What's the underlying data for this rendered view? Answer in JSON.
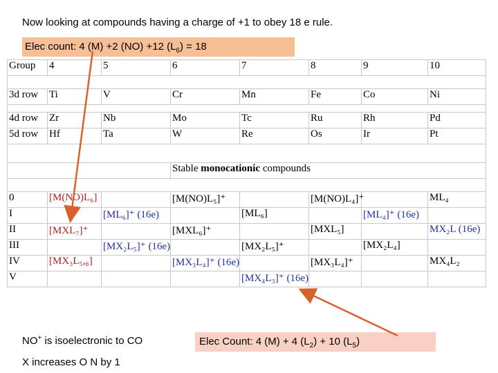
{
  "title": "Now looking at compounds having a charge of +1 to obey 18 e rule.",
  "elec_count_1": {
    "prefix": "Elec count:  4 (M) +2 (NO) +12 (L",
    "sub": "6",
    "suffix": ") = 18"
  },
  "elec_count_2": {
    "prefix": "Elec Count: 4 (M) + 4 (L",
    "sub1": "2",
    "mid": ") + 10 (L",
    "sub2": "5",
    "suffix": ")"
  },
  "note_nitrosyl": {
    "prefix": "NO",
    "sup": "+",
    "suffix": " is isoelectronic to CO"
  },
  "note_x": "X increases O N by 1",
  "table": {
    "header": [
      "Group",
      "4",
      "5",
      "6",
      "7",
      "8",
      "9",
      "10"
    ],
    "row_3d": [
      "3d row",
      "Ti",
      "V",
      "Cr",
      "Mn",
      "Fe",
      "Co",
      "Ni"
    ],
    "row_4d": [
      "4d row",
      "Zr",
      "Nb",
      "Mo",
      "Tc",
      "Ru",
      "Rh",
      "Pd"
    ],
    "row_5d": [
      "5d row",
      "Hf",
      "Ta",
      "W",
      "Re",
      "Os",
      "Ir",
      "Pt"
    ],
    "stable_title": {
      "pre": "Stable ",
      "bold": "monocationic",
      "post": " compounds"
    },
    "ox_labels": [
      "0",
      "I",
      "II",
      "III",
      "IV",
      "V"
    ],
    "entries": {
      "r0_c1": "[M(NO)L₆]",
      "r0_c3": "[M(NO)L₅]⁺",
      "r0_c5": "[M(NO)L₄]⁺",
      "r0_c7": "ML₄",
      "r1_c2": "[ML₆]⁺ (16e)",
      "r1_c4": "[ML₆]",
      "r1_c6": "[ML₄]⁺ (16e)",
      "r2_c1": "[MXL₇]⁺",
      "r2_c3": "[MXL₆]⁺",
      "r2_c5": "[MXL₅]",
      "r2_c7": "MX₂L (16e)",
      "r3_c2": "[MX₂L₅]⁺ (16e)",
      "r3_c4": "[MX₂L₅]⁺",
      "r3_c6": "[MX₂L₄]",
      "r4_c1": "[MX₃L₅,₆]",
      "r4_c3": "[MX₃L₄]⁺ (16e)",
      "r4_c5": "[MX₃L₄]⁺",
      "r4_c7": "MX₄L₂",
      "r5_c4": "[MX₄L₃]⁺ (16e)"
    }
  },
  "colors": {
    "red": "#b02020",
    "blue": "#2030a0",
    "orange_box": "#f7bf95",
    "pink_box": "#f9d0c4",
    "arrow": "#d9622b"
  }
}
